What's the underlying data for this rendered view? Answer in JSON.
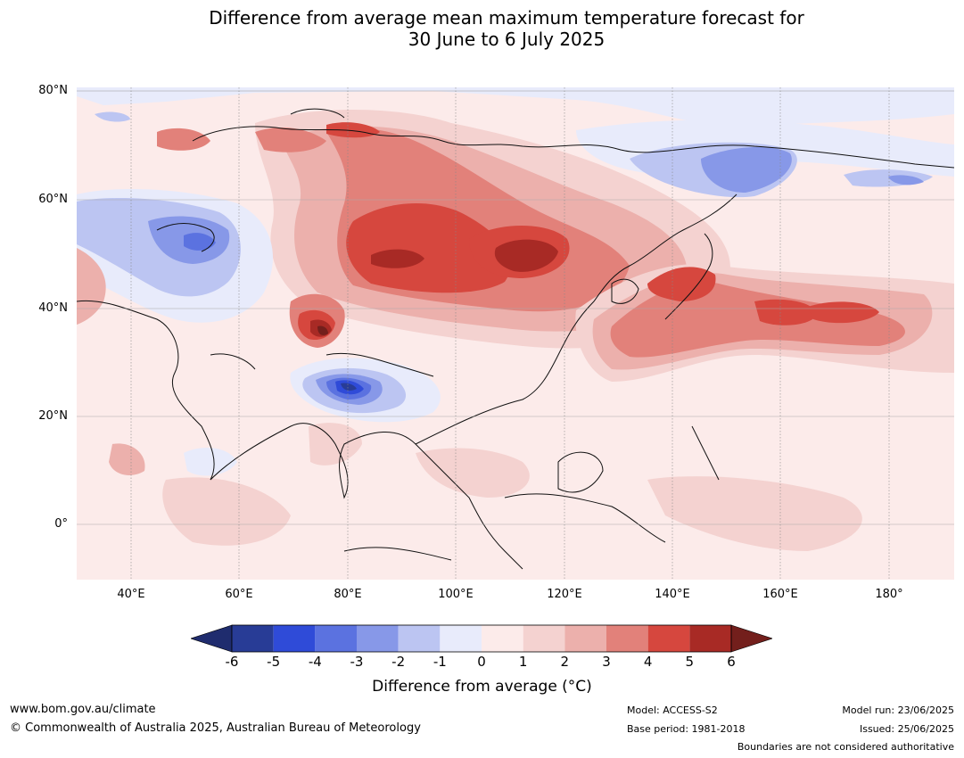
{
  "title_line1": "Difference from average mean maximum temperature forecast for",
  "title_line2": "30 June to 6 July 2025",
  "lat_labels": [
    "80°N",
    "60°N",
    "40°N",
    "20°N",
    "0°"
  ],
  "lon_labels": [
    "40°E",
    "60°E",
    "80°E",
    "100°E",
    "120°E",
    "140°E",
    "160°E",
    "180°"
  ],
  "colorbar": {
    "ticks": [
      "-6",
      "-5",
      "-4",
      "-3",
      "-2",
      "-1",
      "0",
      "1",
      "2",
      "3",
      "4",
      "5",
      "6"
    ],
    "colors": [
      "#283c96",
      "#2f4bd8",
      "#5b72e0",
      "#8798e8",
      "#bcc5f2",
      "#e8ebfb",
      "#fcebea",
      "#f4d2d0",
      "#ecb0ac",
      "#e2817a",
      "#d6473e",
      "#a82a25"
    ],
    "under_color": "#1f2c6e",
    "over_color": "#731f1c",
    "label": "Difference from average (°C)"
  },
  "footer": {
    "website": "www.bom.gov.au/climate",
    "copyright": "© Commonwealth of Australia 2025, Australian Bureau of Meteorology",
    "model": "Model: ACCESS-S2",
    "base_period": "Base period: 1981-2018",
    "model_run": "Model run: 23/06/2025",
    "issued": "Issued: 25/06/2025",
    "boundaries": "Boundaries are not considered authoritative"
  }
}
